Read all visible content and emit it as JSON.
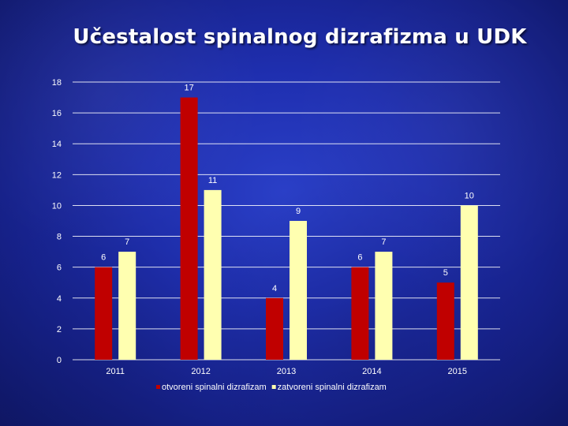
{
  "colors": {
    "series_1": "#c00000",
    "series_2": "#ffffb0",
    "grid": "#ffffff",
    "text": "#ffffff"
  },
  "chart_data": {
    "type": "bar",
    "title": "Učestalost spinalnog dizrafizma u UDK",
    "xlabel": "",
    "ylabel": "",
    "categories": [
      "2011",
      "2012",
      "2013",
      "2014",
      "2015"
    ],
    "series": [
      {
        "name": "otvoreni spinalni dizrafizam",
        "values": [
          6,
          17,
          4,
          6,
          5
        ]
      },
      {
        "name": "zatvoreni spinalni dizrafizam",
        "values": [
          7,
          11,
          9,
          7,
          10
        ]
      }
    ],
    "ylim": [
      0,
      18
    ],
    "yticks": [
      0,
      2,
      4,
      6,
      8,
      10,
      12,
      14,
      16,
      18
    ],
    "grid": true,
    "legend": "bottom",
    "data_labels": true
  }
}
